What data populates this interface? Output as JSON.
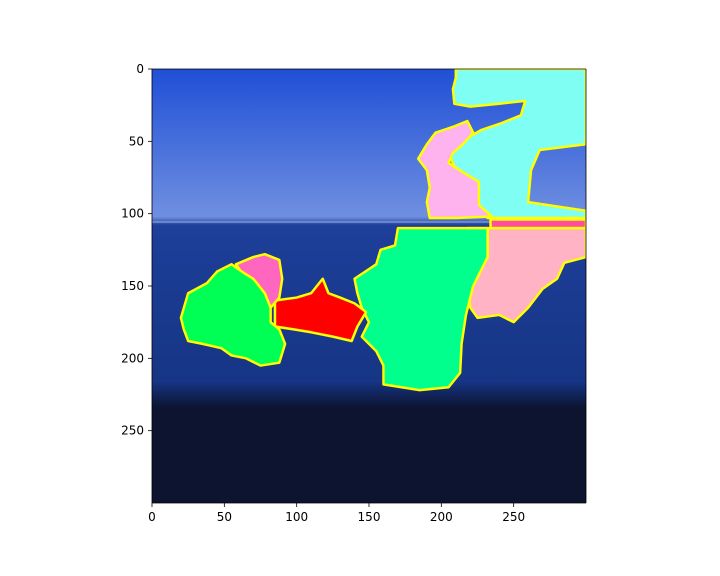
{
  "chart_data": {
    "type": "image-segmentation-overlay",
    "title": "",
    "xlabel": "",
    "ylabel": "",
    "xlim": [
      0,
      300
    ],
    "ylim": [
      300,
      0
    ],
    "x_ticks": [
      0,
      50,
      100,
      150,
      200,
      250
    ],
    "y_ticks": [
      0,
      50,
      100,
      150,
      200,
      250
    ],
    "grid": false,
    "image_background": {
      "sky_top": "#1f4fd6",
      "sky_horizon": "#6f8fe0",
      "water": "#1e3f9a",
      "water_deep": "#163585",
      "shore": "#0c1430"
    },
    "segment_outline_color": "#ffff00",
    "segments": [
      {
        "color": "#7ffff4",
        "points": [
          [
            210,
            0
          ],
          [
            300,
            0
          ],
          [
            300,
            52
          ],
          [
            268,
            56
          ],
          [
            262,
            70
          ],
          [
            260,
            92
          ],
          [
            300,
            98
          ],
          [
            300,
            103
          ],
          [
            232,
            103
          ],
          [
            222,
            94
          ],
          [
            222,
            76
          ],
          [
            210,
            70
          ],
          [
            206,
            60
          ],
          [
            210,
            52
          ],
          [
            228,
            42
          ],
          [
            240,
            38
          ],
          [
            255,
            32
          ],
          [
            258,
            22
          ],
          [
            240,
            24
          ],
          [
            220,
            26
          ],
          [
            209,
            24
          ],
          [
            208,
            14
          ],
          [
            210,
            6
          ]
        ]
      },
      {
        "color": "#ffb3ee",
        "points": [
          [
            190,
            52
          ],
          [
            196,
            44
          ],
          [
            208,
            40
          ],
          [
            218,
            36
          ],
          [
            222,
            44
          ],
          [
            215,
            52
          ],
          [
            208,
            58
          ],
          [
            205,
            65
          ],
          [
            216,
            72
          ],
          [
            226,
            78
          ],
          [
            226,
            94
          ],
          [
            235,
            102
          ],
          [
            210,
            103
          ],
          [
            192,
            103
          ],
          [
            190,
            92
          ],
          [
            192,
            82
          ],
          [
            190,
            70
          ],
          [
            184,
            62
          ]
        ]
      },
      {
        "color": "#ff4da0",
        "points": [
          [
            234,
            104
          ],
          [
            300,
            104
          ],
          [
            300,
            110
          ],
          [
            234,
            110
          ]
        ]
      },
      {
        "color": "#ffb3c4",
        "points": [
          [
            218,
            110
          ],
          [
            300,
            110
          ],
          [
            300,
            130
          ],
          [
            285,
            134
          ],
          [
            280,
            145
          ],
          [
            270,
            152
          ],
          [
            260,
            165
          ],
          [
            250,
            175
          ],
          [
            240,
            170
          ],
          [
            225,
            172
          ],
          [
            220,
            165
          ],
          [
            218,
            150
          ],
          [
            216,
            120
          ]
        ]
      },
      {
        "color": "#00ff8c",
        "points": [
          [
            170,
            110
          ],
          [
            232,
            110
          ],
          [
            232,
            130
          ],
          [
            222,
            150
          ],
          [
            217,
            170
          ],
          [
            214,
            190
          ],
          [
            213,
            210
          ],
          [
            205,
            220
          ],
          [
            185,
            222
          ],
          [
            160,
            218
          ],
          [
            160,
            205
          ],
          [
            155,
            195
          ],
          [
            150,
            190
          ],
          [
            145,
            185
          ],
          [
            150,
            175
          ],
          [
            145,
            165
          ],
          [
            142,
            155
          ],
          [
            140,
            145
          ],
          [
            155,
            135
          ],
          [
            158,
            125
          ],
          [
            168,
            122
          ]
        ]
      },
      {
        "color": "#ff0000",
        "points": [
          [
            85,
            160
          ],
          [
            100,
            158
          ],
          [
            110,
            155
          ],
          [
            118,
            145
          ],
          [
            122,
            155
          ],
          [
            130,
            158
          ],
          [
            140,
            162
          ],
          [
            148,
            168
          ],
          [
            142,
            178
          ],
          [
            138,
            188
          ],
          [
            125,
            185
          ],
          [
            110,
            182
          ],
          [
            98,
            180
          ],
          [
            85,
            178
          ]
        ]
      },
      {
        "color": "#ff66c0",
        "points": [
          [
            58,
            135
          ],
          [
            70,
            130
          ],
          [
            78,
            128
          ],
          [
            88,
            132
          ],
          [
            90,
            145
          ],
          [
            88,
            158
          ],
          [
            82,
            165
          ],
          [
            75,
            155
          ],
          [
            65,
            145
          ]
        ]
      },
      {
        "color": "#00ff55",
        "points": [
          [
            20,
            172
          ],
          [
            25,
            155
          ],
          [
            38,
            148
          ],
          [
            45,
            140
          ],
          [
            55,
            135
          ],
          [
            62,
            140
          ],
          [
            70,
            145
          ],
          [
            78,
            155
          ],
          [
            82,
            165
          ],
          [
            82,
            175
          ],
          [
            88,
            180
          ],
          [
            92,
            190
          ],
          [
            88,
            203
          ],
          [
            75,
            205
          ],
          [
            65,
            200
          ],
          [
            55,
            198
          ],
          [
            48,
            193
          ],
          [
            35,
            190
          ],
          [
            25,
            188
          ],
          [
            22,
            180
          ]
        ]
      }
    ]
  }
}
